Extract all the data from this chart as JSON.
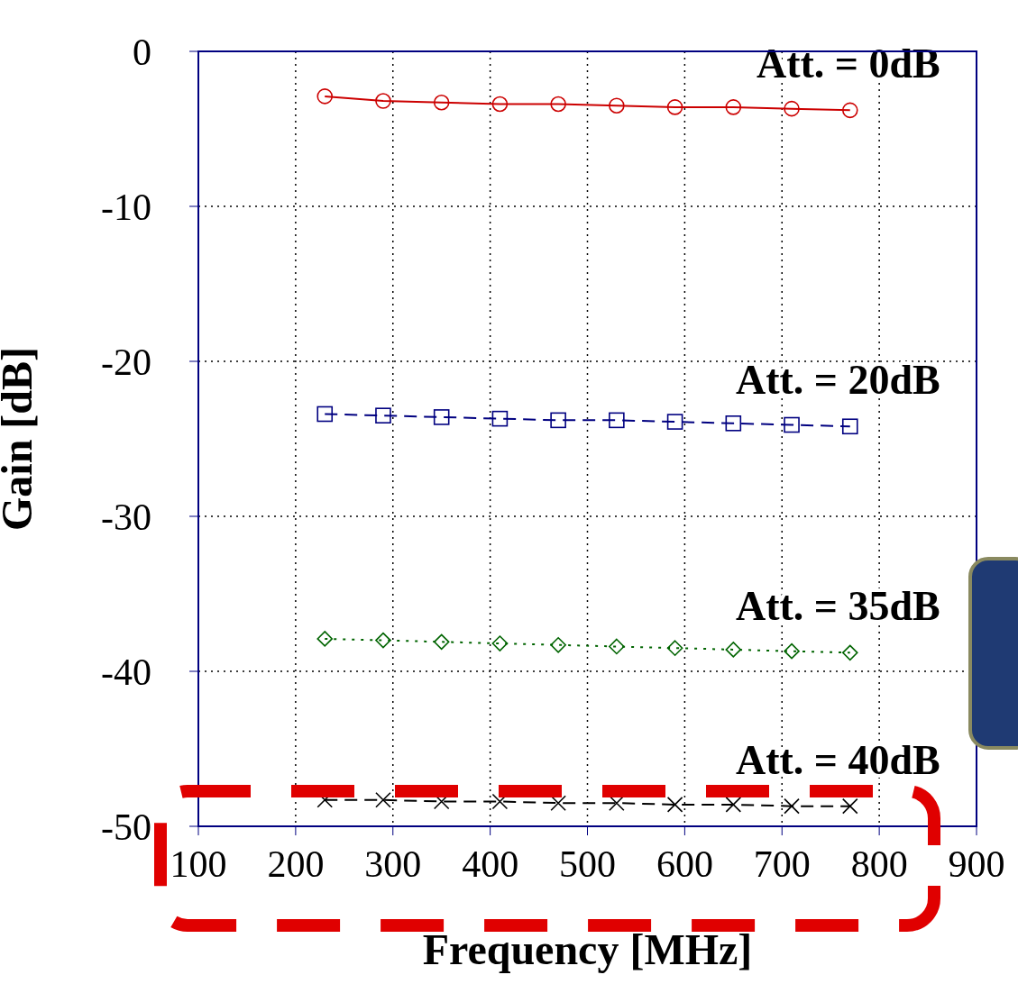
{
  "chart_data": {
    "type": "line",
    "xlabel": "Frequency [MHz]",
    "ylabel": "Gain [dB]",
    "x": [
      230,
      290,
      350,
      410,
      470,
      530,
      590,
      650,
      710,
      770
    ],
    "xlim": [
      100,
      900
    ],
    "xticks": [
      100,
      200,
      300,
      400,
      500,
      600,
      700,
      800,
      900
    ],
    "ylim": [
      -50,
      0
    ],
    "yticks": [
      -50,
      -40,
      -30,
      -20,
      -10,
      0
    ],
    "grid": true,
    "legend": false,
    "series": [
      {
        "name": "Att. = 0dB",
        "color": "#cc0000",
        "marker": "circle",
        "line_style": "solid",
        "values": [
          -2.9,
          -3.2,
          -3.3,
          -3.4,
          -3.4,
          -3.5,
          -3.6,
          -3.6,
          -3.7,
          -3.8
        ]
      },
      {
        "name": "Att. = 20dB",
        "color": "#000080",
        "marker": "square",
        "line_style": "dashed",
        "values": [
          -23.4,
          -23.5,
          -23.6,
          -23.7,
          -23.8,
          -23.8,
          -23.9,
          -24.0,
          -24.1,
          -24.2
        ]
      },
      {
        "name": "Att. = 35dB",
        "color": "#006400",
        "marker": "diamond",
        "line_style": "dotted",
        "values": [
          -37.9,
          -38.0,
          -38.1,
          -38.2,
          -38.3,
          -38.4,
          -38.5,
          -38.6,
          -38.7,
          -38.8
        ]
      },
      {
        "name": "Att. = 40dB",
        "color": "#000000",
        "marker": "cross",
        "line_style": "dashed",
        "values": [
          -48.3,
          -48.3,
          -48.4,
          -48.4,
          -48.5,
          -48.5,
          -48.6,
          -48.6,
          -48.7,
          -48.7
        ]
      }
    ]
  }
}
